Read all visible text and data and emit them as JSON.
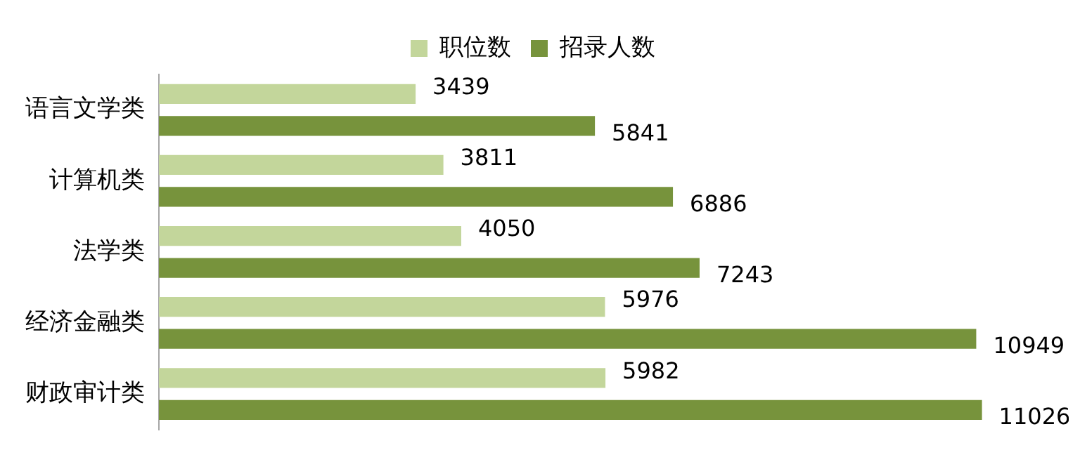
{
  "chart_data": {
    "type": "bar",
    "orientation": "horizontal",
    "categories": [
      "语言文学类",
      "计算机类",
      "法学类",
      "经济金融类",
      "财政审计类"
    ],
    "series": [
      {
        "name": "职位数",
        "color": "#c3d69b",
        "values": [
          3439,
          3811,
          4050,
          5976,
          5982
        ]
      },
      {
        "name": "招录人数",
        "color": "#77933c",
        "values": [
          5841,
          6886,
          7243,
          10949,
          11026
        ]
      }
    ],
    "data_labels": true,
    "legend": "top",
    "grid": false,
    "tick_labels": "y"
  }
}
